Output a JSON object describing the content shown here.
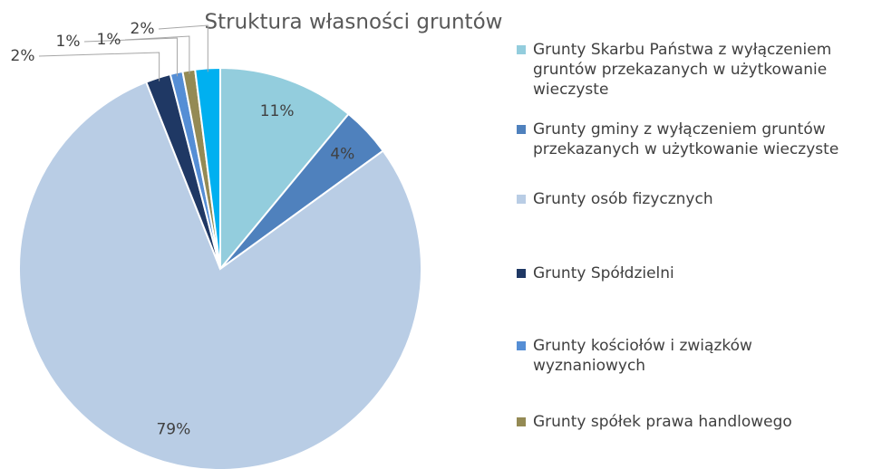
{
  "chart_data": {
    "type": "pie",
    "title": "Struktura własności gruntów",
    "categories": [
      "Grunty Skarbu Państwa z wyłączeniem gruntów przekazanych w użytkowanie wieczyste",
      "Grunty gminy z wyłączeniem gruntów przekazanych w użytkowanie wieczyste",
      "Grunty osób fizycznych",
      "Grunty Spółdzielni",
      "Grunty kościołów i związków wyznaniowych",
      "Grunty spółek prawa handlowego",
      null
    ],
    "values": [
      11,
      4,
      79,
      2,
      1,
      1,
      2
    ],
    "value_labels": [
      "11%",
      "4%",
      "79%",
      "2%",
      "1%",
      "1%",
      "2%"
    ],
    "colors": [
      "#93cddd",
      "#4f81bd",
      "#b9cde5",
      "#1f3864",
      "#558ed5",
      "#948a54",
      "#00b0f0"
    ],
    "legend": "right"
  }
}
